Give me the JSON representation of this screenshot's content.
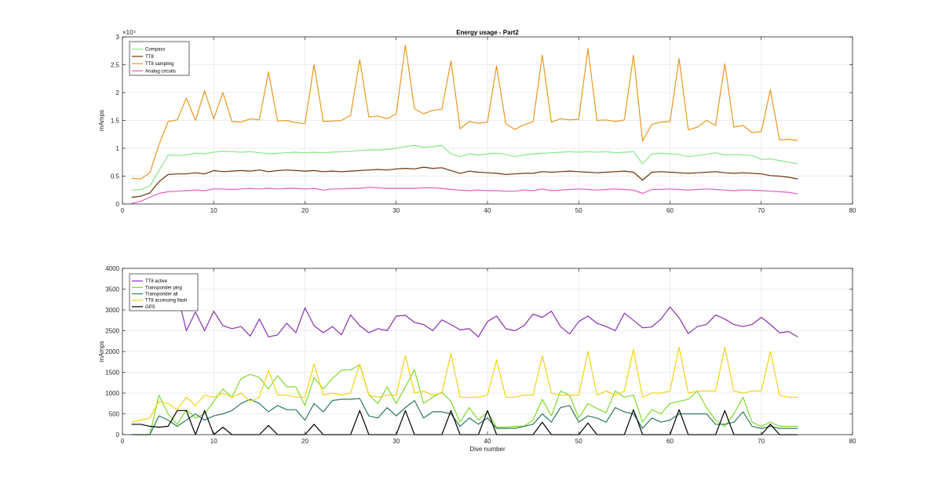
{
  "chart_data": [
    {
      "type": "line",
      "title": "Energy usage - Part2",
      "xlabel": "",
      "ylabel": "mAmps",
      "xlim": [
        0,
        80
      ],
      "ylim": [
        0,
        30000
      ],
      "xticks": [
        0,
        10,
        20,
        30,
        40,
        50,
        60,
        70,
        80
      ],
      "yticks": [
        0,
        5000,
        10000,
        15000,
        20000,
        25000,
        30000
      ],
      "xtick_labels": [
        "0",
        "10",
        "20",
        "30",
        "40",
        "50",
        "60",
        "70",
        "80"
      ],
      "ytick_labels": [
        "0",
        "0.5",
        "1",
        "1.5",
        "2",
        "2.5",
        "3"
      ],
      "y_exponent_label": "×10⁴",
      "grid": true,
      "legend_position": "top-left",
      "x": [
        1,
        2,
        3,
        4,
        5,
        6,
        7,
        8,
        9,
        10,
        11,
        12,
        13,
        14,
        15,
        16,
        17,
        18,
        19,
        20,
        21,
        22,
        23,
        24,
        25,
        26,
        27,
        28,
        29,
        30,
        31,
        32,
        33,
        34,
        35,
        36,
        37,
        38,
        39,
        40,
        41,
        42,
        43,
        44,
        45,
        46,
        47,
        48,
        49,
        50,
        51,
        52,
        53,
        54,
        55,
        56,
        57,
        58,
        59,
        60,
        61,
        62,
        63,
        64,
        65,
        66,
        67,
        68,
        69,
        70,
        71,
        72,
        73,
        74
      ],
      "series": [
        {
          "name": "Compass",
          "color": "#88e788",
          "values": [
            2500,
            2600,
            3200,
            6000,
            8800,
            8700,
            8800,
            9100,
            9000,
            9300,
            9500,
            9400,
            9300,
            9400,
            9200,
            9000,
            9100,
            9200,
            9300,
            9200,
            9300,
            9200,
            9300,
            9400,
            9500,
            9600,
            9700,
            9700,
            9800,
            10000,
            10300,
            10500,
            10200,
            10300,
            10500,
            9000,
            8500,
            9000,
            8800,
            9000,
            9100,
            8900,
            8500,
            8800,
            9000,
            9100,
            9200,
            9300,
            9400,
            9300,
            9400,
            9300,
            9400,
            9200,
            9300,
            9400,
            7200,
            9000,
            9100,
            9000,
            8900,
            8500,
            8700,
            8900,
            9200,
            8800,
            8900,
            8800,
            8700,
            8000,
            8100,
            7800,
            7500,
            7200
          ]
        },
        {
          "name": "TT8",
          "color": "#6b3510",
          "values": [
            1200,
            1400,
            2000,
            4000,
            5300,
            5400,
            5400,
            5600,
            5400,
            6000,
            5800,
            5900,
            6000,
            5900,
            6100,
            5800,
            6000,
            6100,
            6000,
            5900,
            6000,
            5800,
            5900,
            5800,
            5900,
            6000,
            6100,
            6200,
            6100,
            6300,
            6400,
            6300,
            6600,
            6400,
            6500,
            6000,
            5500,
            5900,
            5700,
            5600,
            5500,
            5300,
            5400,
            5500,
            5500,
            5800,
            5700,
            5800,
            5900,
            5800,
            5700,
            5600,
            5700,
            5800,
            5900,
            5700,
            4300,
            5700,
            5800,
            5700,
            5600,
            5500,
            5600,
            5700,
            5800,
            5600,
            5500,
            5600,
            5500,
            5400,
            5100,
            5000,
            4800,
            4500
          ]
        },
        {
          "name": "TT8 sampling",
          "color": "#e9981f",
          "values": [
            4600,
            4500,
            5600,
            10600,
            14800,
            15100,
            19000,
            15000,
            20300,
            15300,
            20000,
            14800,
            14700,
            15300,
            15100,
            23700,
            14900,
            15000,
            14600,
            14400,
            25000,
            14800,
            14900,
            15000,
            15900,
            25900,
            15600,
            15800,
            15300,
            16200,
            28500,
            17100,
            16200,
            16800,
            17000,
            25700,
            13500,
            14800,
            14500,
            14700,
            24800,
            14400,
            13400,
            14200,
            14800,
            26700,
            14700,
            15300,
            15100,
            15200,
            27900,
            15000,
            15100,
            14800,
            15100,
            26700,
            11300,
            14300,
            14700,
            14800,
            26100,
            13300,
            13800,
            15000,
            14100,
            25200,
            13800,
            14100,
            12800,
            13000,
            20500,
            11500,
            11600,
            11400
          ]
        },
        {
          "name": "Analog circuits",
          "color": "#e25fc1",
          "values": [
            100,
            500,
            1200,
            1900,
            2200,
            2300,
            2400,
            2500,
            2400,
            2700,
            2700,
            2600,
            2700,
            2800,
            2700,
            2800,
            2700,
            2800,
            2800,
            2700,
            2800,
            2500,
            2700,
            2700,
            2800,
            2800,
            3000,
            2900,
            2800,
            2800,
            2800,
            2800,
            2900,
            2900,
            2800,
            2600,
            2500,
            2400,
            2500,
            2400,
            2400,
            2300,
            2300,
            2500,
            2400,
            2700,
            2400,
            2500,
            2600,
            2700,
            2600,
            2500,
            2600,
            2700,
            2600,
            2500,
            1900,
            2600,
            2600,
            2700,
            2600,
            2500,
            2600,
            2700,
            2600,
            2500,
            2400,
            2500,
            2500,
            2400,
            2300,
            2200,
            2100,
            1800
          ]
        }
      ]
    },
    {
      "type": "line",
      "title": "",
      "xlabel": "Dive number",
      "ylabel": "mAmps",
      "xlim": [
        0,
        80
      ],
      "ylim": [
        0,
        4000
      ],
      "xticks": [
        0,
        10,
        20,
        30,
        40,
        50,
        60,
        70,
        80
      ],
      "yticks": [
        0,
        500,
        1000,
        1500,
        2000,
        2500,
        3000,
        3500,
        4000
      ],
      "xtick_labels": [
        "0",
        "10",
        "20",
        "30",
        "40",
        "50",
        "60",
        "70",
        "80"
      ],
      "ytick_labels": [
        "0",
        "500",
        "1000",
        "1500",
        "2000",
        "2500",
        "3000",
        "3500",
        "4000"
      ],
      "grid": true,
      "legend_position": "top-left",
      "x": [
        1,
        2,
        3,
        4,
        5,
        6,
        7,
        8,
        9,
        10,
        11,
        12,
        13,
        14,
        15,
        16,
        17,
        18,
        19,
        20,
        21,
        22,
        23,
        24,
        25,
        26,
        27,
        28,
        29,
        30,
        31,
        32,
        33,
        34,
        35,
        36,
        37,
        38,
        39,
        40,
        41,
        42,
        43,
        44,
        45,
        46,
        47,
        48,
        49,
        50,
        51,
        52,
        53,
        54,
        55,
        56,
        57,
        58,
        59,
        60,
        61,
        62,
        63,
        64,
        65,
        66,
        67,
        68,
        69,
        70,
        71,
        72,
        73,
        74
      ],
      "series": [
        {
          "name": "TT8 active",
          "color": "#8b2fb0",
          "values": [
            3300,
            3500,
            3400,
            3300,
            3300,
            3400,
            2500,
            2950,
            2500,
            2970,
            2620,
            2550,
            2600,
            2370,
            2780,
            2350,
            2400,
            2680,
            2450,
            3050,
            2620,
            2450,
            2600,
            2400,
            2880,
            2620,
            2450,
            2550,
            2500,
            2850,
            2870,
            2700,
            2650,
            2500,
            2760,
            2650,
            2520,
            2550,
            2350,
            2720,
            2850,
            2550,
            2500,
            2620,
            2900,
            2820,
            2970,
            2600,
            2420,
            2720,
            2850,
            2680,
            2600,
            2500,
            2920,
            2750,
            2570,
            2590,
            2780,
            3070,
            2810,
            2430,
            2600,
            2650,
            2880,
            2780,
            2650,
            2600,
            2650,
            2820,
            2650,
            2450,
            2480,
            2350
          ]
        },
        {
          "name": "Transponder ping",
          "color": "#7fdb2f",
          "values": [
            0,
            0,
            0,
            950,
            500,
            250,
            600,
            400,
            500,
            800,
            1100,
            900,
            1350,
            1450,
            1380,
            1100,
            1420,
            1150,
            1150,
            700,
            1370,
            1100,
            1350,
            1550,
            1560,
            1680,
            950,
            750,
            1150,
            750,
            1150,
            1560,
            750,
            900,
            1020,
            800,
            300,
            650,
            350,
            550,
            180,
            180,
            200,
            200,
            350,
            850,
            450,
            1050,
            950,
            400,
            750,
            630,
            530,
            1050,
            900,
            950,
            300,
            600,
            500,
            750,
            800,
            850,
            1050,
            650,
            350,
            200,
            500,
            900,
            300,
            200,
            300,
            200,
            200,
            200
          ]
        },
        {
          "name": "Transponder all",
          "color": "#2f7a5a",
          "values": [
            0,
            0,
            0,
            450,
            350,
            200,
            350,
            500,
            350,
            450,
            500,
            580,
            750,
            850,
            750,
            550,
            700,
            600,
            600,
            350,
            750,
            550,
            820,
            850,
            850,
            870,
            450,
            400,
            650,
            450,
            650,
            820,
            400,
            550,
            550,
            500,
            200,
            400,
            250,
            400,
            150,
            150,
            150,
            200,
            250,
            500,
            300,
            650,
            700,
            300,
            450,
            400,
            300,
            650,
            550,
            500,
            150,
            400,
            300,
            350,
            500,
            500,
            500,
            500,
            250,
            250,
            300,
            550,
            200,
            150,
            200,
            150,
            150,
            150
          ]
        },
        {
          "name": "TT8 accessing flash",
          "color": "#f3d214",
          "values": [
            300,
            350,
            400,
            800,
            750,
            600,
            900,
            700,
            950,
            900,
            1000,
            900,
            1000,
            800,
            900,
            1550,
            950,
            950,
            900,
            900,
            1700,
            950,
            1000,
            950,
            1000,
            1700,
            950,
            900,
            950,
            950,
            1900,
            1000,
            1050,
            950,
            1000,
            1950,
            900,
            900,
            900,
            950,
            1800,
            900,
            900,
            950,
            950,
            1900,
            1000,
            950,
            950,
            950,
            2000,
            950,
            1050,
            950,
            1050,
            2050,
            900,
            1000,
            1000,
            1050,
            2100,
            1000,
            1050,
            1050,
            1050,
            2100,
            1050,
            1000,
            1050,
            1050,
            2000,
            950,
            900,
            900
          ]
        },
        {
          "name": "GPS",
          "color": "#000000",
          "values": [
            250,
            250,
            200,
            180,
            200,
            580,
            580,
            0,
            580,
            0,
            180,
            0,
            0,
            0,
            0,
            220,
            0,
            0,
            0,
            0,
            250,
            0,
            0,
            0,
            0,
            580,
            0,
            0,
            0,
            0,
            580,
            0,
            0,
            0,
            0,
            580,
            0,
            0,
            0,
            580,
            0,
            0,
            0,
            0,
            0,
            300,
            0,
            0,
            0,
            0,
            280,
            0,
            0,
            0,
            0,
            600,
            0,
            0,
            0,
            0,
            600,
            0,
            0,
            0,
            0,
            580,
            0,
            0,
            0,
            0,
            250,
            0,
            0,
            0
          ]
        }
      ]
    }
  ]
}
